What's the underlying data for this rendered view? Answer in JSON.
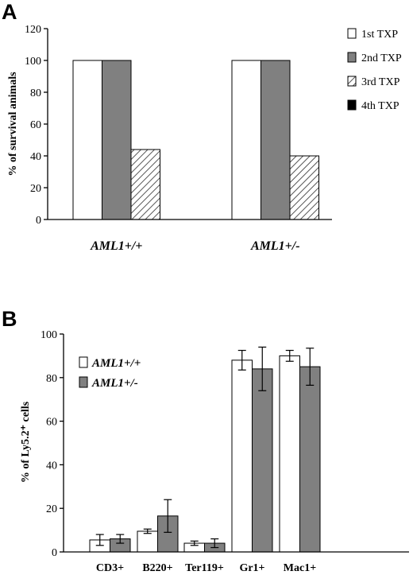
{
  "chart_data": [
    {
      "panel": "A",
      "type": "bar",
      "ylabel": "% of survival animals",
      "ylim": [
        0,
        120
      ],
      "yticks": [
        0,
        20,
        40,
        60,
        80,
        100,
        120
      ],
      "categories": [
        "AML1+/+",
        "AML1+/-"
      ],
      "series": [
        {
          "name": "1st TXP",
          "values": [
            100,
            100
          ],
          "fill": "#ffffff",
          "pattern": "solid"
        },
        {
          "name": "2nd TXP",
          "values": [
            100,
            100
          ],
          "fill": "#808080",
          "pattern": "solid"
        },
        {
          "name": "3rd TXP",
          "values": [
            44,
            40
          ],
          "fill": "#ffffff",
          "pattern": "diagonal-hatch"
        },
        {
          "name": "4th TXP",
          "values": [
            0,
            0
          ],
          "fill": "#000000",
          "pattern": "solid"
        }
      ],
      "legend_position": "top-right",
      "grid": false
    },
    {
      "panel": "B",
      "type": "bar",
      "ylabel": "% of Ly5.2⁺ cells",
      "ylim": [
        0,
        100
      ],
      "yticks": [
        0,
        20,
        40,
        60,
        80,
        100
      ],
      "categories": [
        "CD3+",
        "B220+",
        "Ter119+",
        "Gr1+",
        "Mac1+"
      ],
      "series": [
        {
          "name": "AML1+/+",
          "values": [
            5.5,
            9.5,
            4,
            88,
            90
          ],
          "errors": [
            2.5,
            1,
            1,
            4.5,
            2.5
          ],
          "fill": "#ffffff"
        },
        {
          "name": "AML1+/-",
          "values": [
            6,
            16.5,
            4,
            84,
            85
          ],
          "errors": [
            2,
            7.5,
            2,
            10,
            8.5
          ],
          "fill": "#808080"
        }
      ],
      "legend_position": "top-left",
      "grid": false
    }
  ]
}
